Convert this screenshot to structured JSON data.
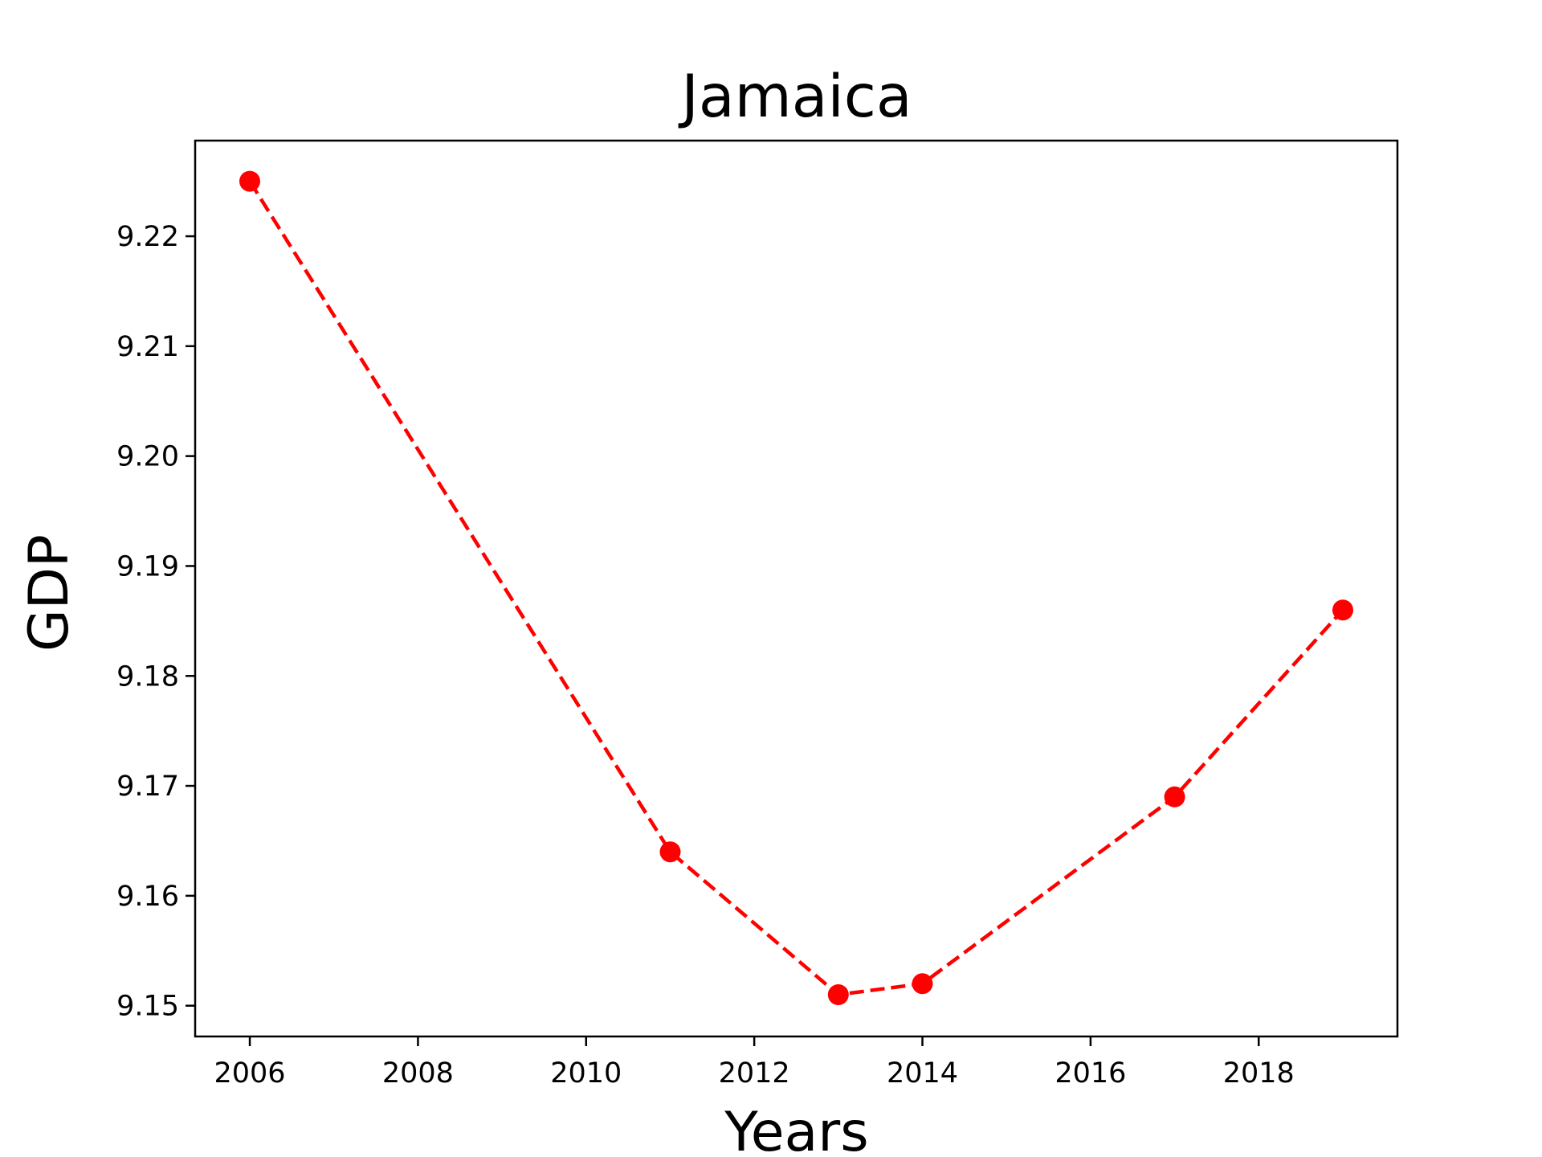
{
  "chart_data": {
    "type": "line",
    "title": "Jamaica",
    "xlabel": "Years",
    "ylabel": "GDP",
    "x": [
      2006,
      2011,
      2013,
      2014,
      2017,
      2019
    ],
    "series": [
      {
        "values": [
          9.225,
          9.164,
          9.151,
          9.152,
          9.169,
          9.186
        ],
        "color": "#ff0000",
        "line_style": "dashed",
        "marker": "circle"
      }
    ],
    "xlim": [
      2005.35,
      2019.65
    ],
    "ylim": [
      9.1472,
      9.2287
    ],
    "xticks": [
      "2006",
      "2008",
      "2010",
      "2012",
      "2014",
      "2016",
      "2018"
    ],
    "yticks": [
      "9.15",
      "9.16",
      "9.17",
      "9.18",
      "9.19",
      "9.20",
      "9.21",
      "9.22"
    ],
    "grid": false,
    "legend": "none"
  }
}
